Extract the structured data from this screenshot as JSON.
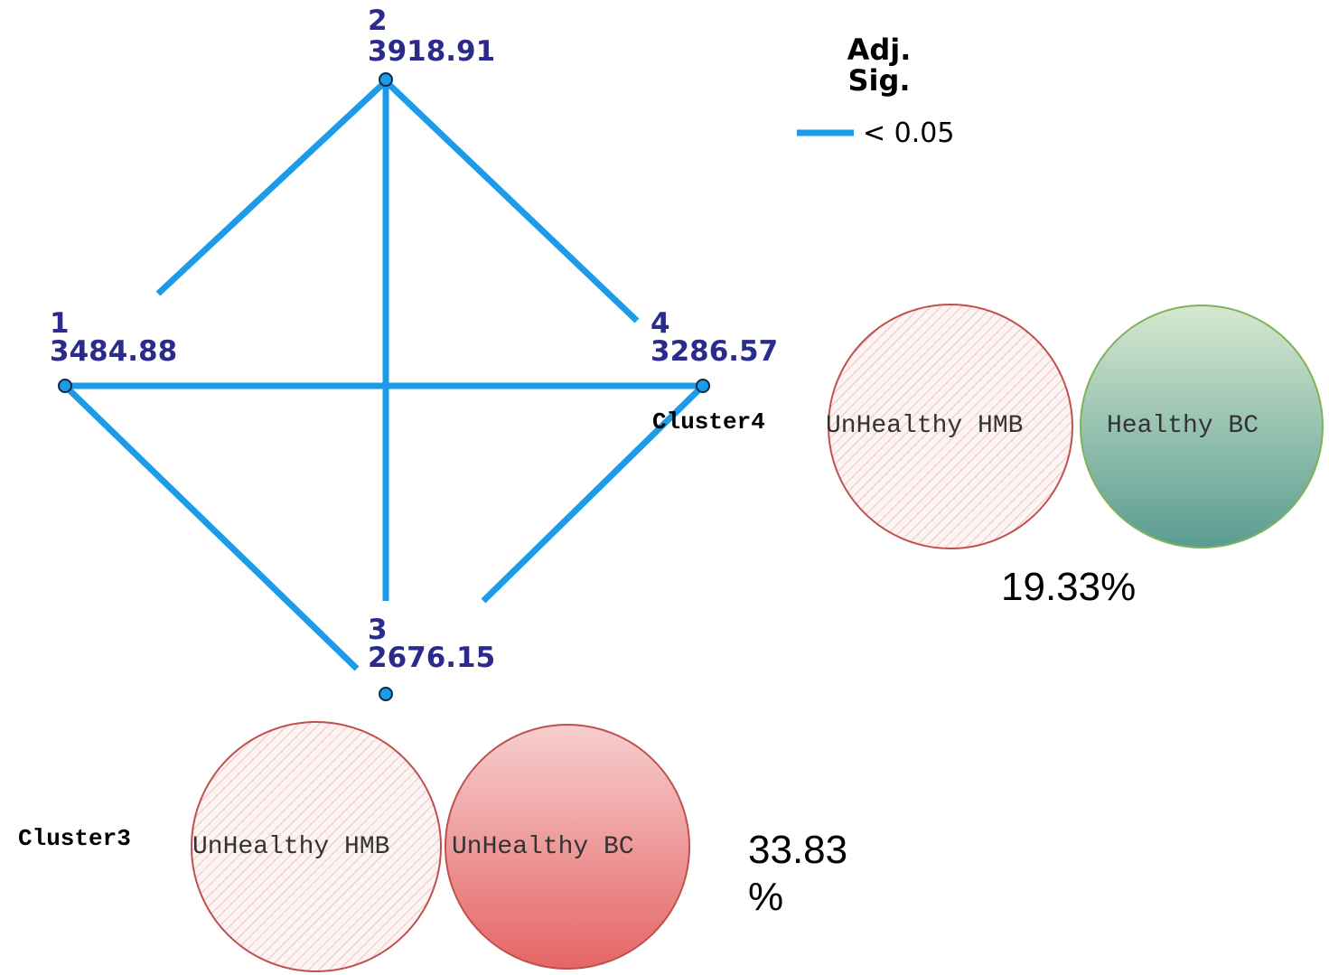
{
  "nodes": [
    {
      "id": "1",
      "value": "3484.88"
    },
    {
      "id": "2",
      "value": "3918.91"
    },
    {
      "id": "3",
      "value": "2676.15"
    },
    {
      "id": "4",
      "value": "3286.57"
    }
  ],
  "legend": {
    "title": "Adj. Sig.",
    "item": "< 0.05"
  },
  "clusters": [
    {
      "name": "Cluster4",
      "left": "UnHealthy HMB",
      "right": "Healthy BC",
      "percent": "19.33%"
    },
    {
      "name": "Cluster3",
      "left": "UnHealthy HMB",
      "right": "UnHealthy BC",
      "percent": "33.83 %"
    }
  ]
}
